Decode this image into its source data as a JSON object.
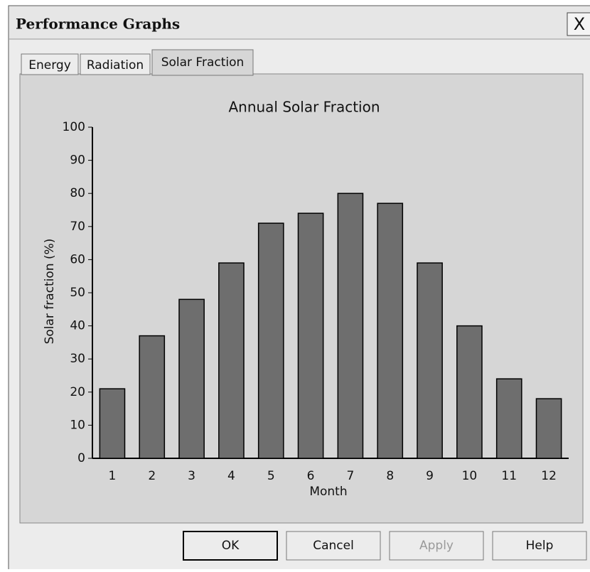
{
  "window": {
    "title": "Performance Graphs",
    "close": "X"
  },
  "tabs": [
    "Energy",
    "Radiation",
    "Solar Fraction"
  ],
  "buttons": [
    "OK",
    "Cancel",
    "Apply",
    "Help"
  ],
  "chart_data": {
    "type": "bar",
    "title": "Annual Solar Fraction",
    "x_label": "Month",
    "y_label": "Solar fraction (%)",
    "categories": [
      "1",
      "2",
      "3",
      "4",
      "5",
      "6",
      "7",
      "8",
      "9",
      "10",
      "11",
      "12"
    ],
    "values": [
      21,
      37,
      48,
      59,
      71,
      74,
      80,
      77,
      59,
      40,
      24,
      18
    ],
    "color": "#6e6e6e",
    "ylim": [
      0,
      100
    ],
    "yticks": [
      0,
      10,
      20,
      30,
      40,
      50,
      60,
      70,
      80,
      90,
      100
    ],
    "grid": false
  }
}
